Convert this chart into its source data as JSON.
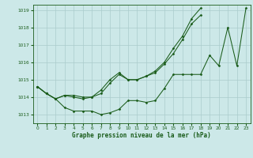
{
  "title": "Graphe pression niveau de la mer (hPa)",
  "bg_color": "#cce8e8",
  "grid_color": "#aacccc",
  "line_color": "#1a5c1a",
  "xlim": [
    -0.5,
    23.5
  ],
  "ylim": [
    1012.5,
    1019.3
  ],
  "xticks": [
    0,
    1,
    2,
    3,
    4,
    5,
    6,
    7,
    8,
    9,
    10,
    11,
    12,
    13,
    14,
    15,
    16,
    17,
    18,
    19,
    20,
    21,
    22,
    23
  ],
  "yticks": [
    1013,
    1014,
    1015,
    1016,
    1017,
    1018,
    1019
  ],
  "series": [
    [
      1014.6,
      1014.2,
      1013.9,
      1013.4,
      1013.2,
      1013.2,
      1013.2,
      1013.0,
      1013.1,
      1013.3,
      1013.8,
      1013.8,
      1013.7,
      1013.8,
      1014.5,
      1015.3,
      1015.3,
      1015.3,
      1015.3,
      1016.4,
      1015.8,
      1018.0,
      1015.8,
      1019.1
    ],
    [
      1014.6,
      1014.2,
      1013.9,
      1014.1,
      1014.1,
      1014.0,
      1014.0,
      1014.4,
      1015.0,
      1015.4,
      1015.0,
      1015.0,
      1015.2,
      1015.5,
      1016.0,
      1016.8,
      1017.5,
      1018.5,
      1019.1,
      null,
      null,
      null,
      null,
      null
    ],
    [
      1014.6,
      1014.2,
      1013.9,
      1014.1,
      1014.0,
      1013.9,
      1014.0,
      1014.2,
      1014.8,
      1015.3,
      1015.0,
      1015.0,
      1015.2,
      1015.4,
      1015.9,
      1016.5,
      1017.3,
      1018.2,
      1018.7,
      null,
      null,
      null,
      null,
      null
    ]
  ],
  "title_fontsize": 5.5,
  "tick_fontsize": 4.2,
  "linewidth": 0.75,
  "markersize": 1.5
}
